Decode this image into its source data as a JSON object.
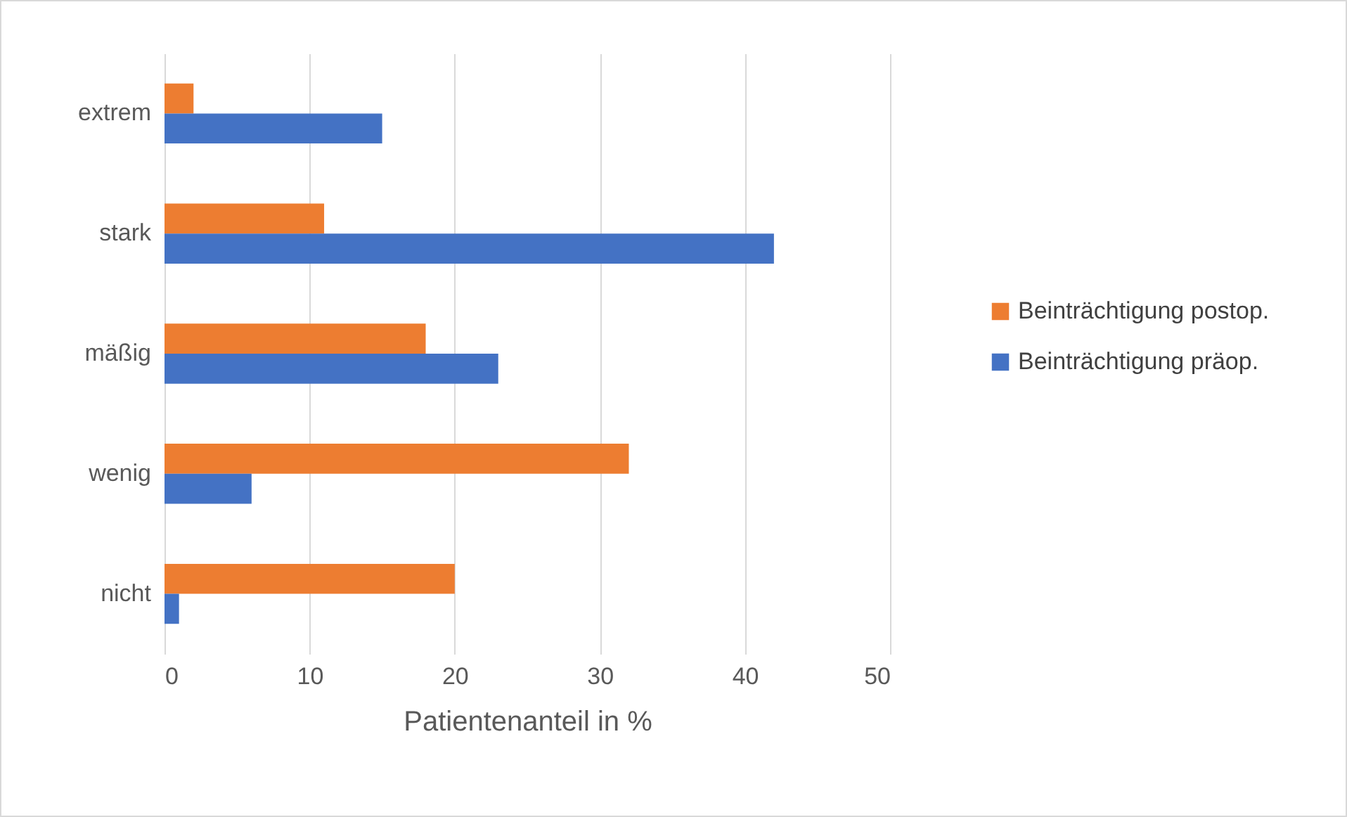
{
  "chart_data": {
    "type": "bar",
    "orientation": "horizontal",
    "xlabel": "Patientenanteil in %",
    "categories": [
      "extrem",
      "stark",
      "mäßig",
      "wenig",
      "nicht"
    ],
    "series": [
      {
        "name": "Beinträchtigung postop.",
        "color": "#ed7d31",
        "values": [
          2,
          11,
          18,
          32,
          20
        ]
      },
      {
        "name": "Beinträchtigung präop.",
        "color": "#4472c4",
        "values": [
          15,
          42,
          23,
          6,
          1
        ]
      }
    ],
    "xlim": [
      0,
      50
    ],
    "xticks": [
      0,
      10,
      20,
      30,
      40,
      50
    ],
    "grid": "x",
    "legend": "right"
  }
}
